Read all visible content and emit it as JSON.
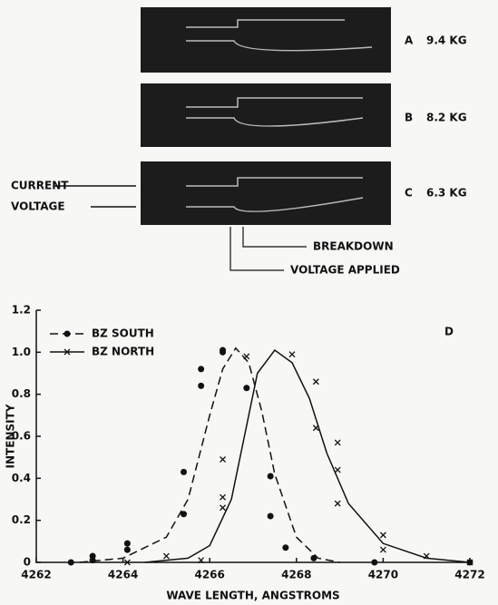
{
  "photos": {
    "panels": [
      {
        "letter": "A",
        "field": "9.4 KG"
      },
      {
        "letter": "B",
        "field": "8.2 KG"
      },
      {
        "letter": "C",
        "field": "6.3 KG"
      }
    ],
    "left_labels": [
      "CURRENT",
      "VOLTAGE"
    ],
    "breakdown": "BREAKDOWN",
    "voltage_applied": "VOLTAGE APPLIED"
  },
  "chart_data": {
    "type": "scatter",
    "annotation": "D",
    "x_label": "WAVE LENGTH, ANGSTROMS",
    "y_label": "INTENSITY",
    "xlim": [
      4262,
      4272
    ],
    "xticks": [
      4262,
      4264,
      4266,
      4268,
      4270,
      4272
    ],
    "ylim": [
      0,
      1.2
    ],
    "yticks": [
      0,
      0.2,
      0.4,
      0.6,
      0.8,
      {
        "value": 1,
        "label": "1.0"
      },
      1.2
    ],
    "legend": "upper left",
    "series": [
      {
        "name": "BZ SOUTH",
        "color": "#111111",
        "marker": "dot",
        "line_style": "dashed",
        "x": [
          4262.8,
          4263.3,
          4263.3,
          4264.1,
          4264.1,
          4265.4,
          4265.4,
          4265.8,
          4265.8,
          4266.3,
          4266.3,
          4266.85,
          4267.4,
          4267.4,
          4267.75,
          4268.4,
          4269.8,
          4272
        ],
        "values": [
          0,
          0.03,
          0.01,
          0.09,
          0.06,
          0.43,
          0.23,
          0.84,
          0.92,
          1.0,
          1.01,
          0.83,
          0.41,
          0.22,
          0.07,
          0.02,
          0,
          0
        ],
        "fit_x": [
          4263,
          4264,
          4265,
          4265.5,
          4266,
          4266.3,
          4266.6,
          4266.9,
          4267.2,
          4267.5,
          4268,
          4268.5,
          4269
        ],
        "fit_values": [
          0,
          0.02,
          0.12,
          0.3,
          0.7,
          0.92,
          1.02,
          0.95,
          0.72,
          0.42,
          0.12,
          0.02,
          0
        ]
      },
      {
        "name": "BZ NORTH",
        "color": "#111111",
        "marker": "cross",
        "line_style": "solid",
        "x": [
          4264.1,
          4265.0,
          4265.8,
          4266.3,
          4266.3,
          4266.3,
          4266.85,
          4267.9,
          4268.45,
          4268.45,
          4268.95,
          4268.95,
          4268.95,
          4270,
          4270,
          4271,
          4272
        ],
        "values": [
          0,
          0.03,
          0.01,
          0.49,
          0.31,
          0.26,
          0.98,
          0.99,
          0.86,
          0.64,
          0.57,
          0.44,
          0.28,
          0.13,
          0.06,
          0.03,
          0
        ],
        "fit_x": [
          4264.5,
          4265.5,
          4266,
          4266.5,
          4266.8,
          4267.1,
          4267.5,
          4267.9,
          4268.3,
          4268.7,
          4269.2,
          4270,
          4271,
          4272
        ],
        "fit_values": [
          0,
          0.02,
          0.08,
          0.3,
          0.6,
          0.9,
          1.01,
          0.95,
          0.78,
          0.52,
          0.28,
          0.09,
          0.02,
          0
        ]
      }
    ]
  }
}
